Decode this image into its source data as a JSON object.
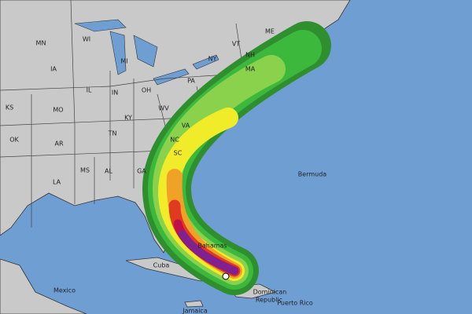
{
  "map": {
    "labels": [
      "MN",
      "WI",
      "MI",
      "IA",
      "IL",
      "IN",
      "OH",
      "PA",
      "NY",
      "VT",
      "NH",
      "ME",
      "MA",
      "KS",
      "MO",
      "KY",
      "WV",
      "VA",
      "OK",
      "AR",
      "TN",
      "NC",
      "MS",
      "AL",
      "GA",
      "SC",
      "LA",
      "Bermuda",
      "Bahamas",
      "Cuba",
      "Mexico",
      "Jamaica",
      "Dominican",
      "Republic",
      "Puerto Rico"
    ]
  }
}
